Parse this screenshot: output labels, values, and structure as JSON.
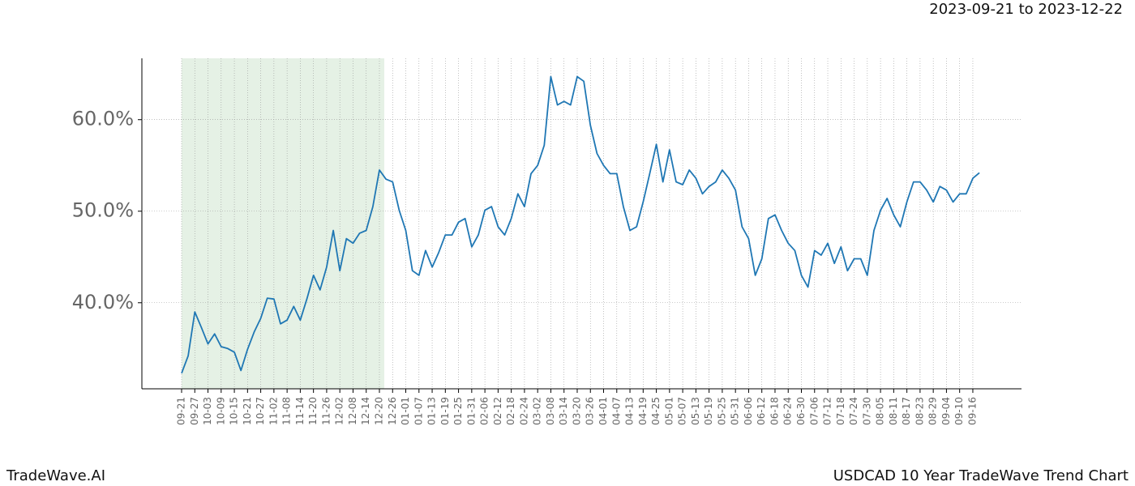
{
  "header": {
    "date_range": "2023-09-21 to 2023-12-22"
  },
  "footer": {
    "brand": "TradeWave.AI",
    "caption": "USDCAD 10 Year TradeWave Trend Chart"
  },
  "chart_data": {
    "type": "line",
    "categories": [
      "09-21",
      null,
      "09-27",
      null,
      "10-03",
      null,
      "10-09",
      null,
      "10-15",
      null,
      "10-21",
      null,
      "10-27",
      null,
      "11-02",
      null,
      "11-08",
      null,
      "11-14",
      null,
      "11-20",
      null,
      "11-26",
      null,
      "12-02",
      null,
      "12-08",
      null,
      "12-14",
      null,
      "12-20",
      null,
      "12-26",
      null,
      "01-01",
      null,
      "01-07",
      null,
      "01-13",
      null,
      "01-19",
      null,
      "01-25",
      null,
      "01-31",
      null,
      "02-06",
      null,
      "02-12",
      null,
      "02-18",
      null,
      "02-24",
      null,
      "03-02",
      null,
      "03-08",
      null,
      "03-14",
      null,
      "03-20",
      null,
      "03-26",
      null,
      "04-01",
      null,
      "04-07",
      null,
      "04-13",
      null,
      "04-19",
      null,
      "04-25",
      null,
      "05-01",
      null,
      "05-07",
      null,
      "05-13",
      null,
      "05-19",
      null,
      "05-25",
      null,
      "05-31",
      null,
      "06-06",
      null,
      "06-12",
      null,
      "06-18",
      null,
      "06-24",
      null,
      "06-30",
      null,
      "07-06",
      null,
      "07-12",
      null,
      "07-18",
      null,
      "07-24",
      null,
      "07-30",
      null,
      "08-05",
      null,
      "08-11",
      null,
      "08-17",
      null,
      "08-23",
      null,
      "08-29",
      null,
      "09-04",
      null,
      "09-10",
      null,
      "09-16",
      null
    ],
    "values": [
      32.3,
      34.2,
      39.0,
      37.3,
      35.5,
      36.6,
      35.2,
      35.0,
      34.6,
      32.6,
      34.9,
      36.8,
      38.3,
      40.5,
      40.4,
      37.7,
      38.1,
      39.6,
      38.1,
      40.4,
      43.0,
      41.4,
      43.9,
      47.9,
      43.5,
      47.0,
      46.5,
      47.6,
      47.9,
      50.5,
      54.5,
      53.5,
      53.2,
      50.1,
      47.9,
      43.5,
      43.0,
      45.7,
      43.9,
      45.5,
      47.4,
      47.4,
      48.8,
      49.2,
      46.1,
      47.4,
      50.1,
      50.5,
      48.3,
      47.4,
      49.2,
      51.9,
      50.5,
      54.1,
      55.0,
      57.2,
      64.7,
      61.6,
      62.0,
      61.6,
      64.7,
      64.2,
      59.4,
      56.3,
      55.0,
      54.1,
      54.1,
      50.5,
      47.9,
      48.3,
      51.0,
      54.1,
      57.3,
      53.2,
      56.7,
      53.2,
      52.9,
      54.5,
      53.6,
      51.9,
      52.7,
      53.2,
      54.5,
      53.6,
      52.3,
      48.3,
      47.0,
      43.0,
      44.8,
      49.2,
      49.6,
      47.9,
      46.5,
      45.7,
      43.0,
      41.7,
      45.7,
      45.2,
      46.5,
      44.3,
      46.1,
      43.5,
      44.8,
      44.8,
      43.0,
      47.9,
      50.1,
      51.4,
      49.6,
      48.3,
      51.0,
      53.2,
      53.2,
      52.3,
      51.0,
      52.7,
      52.3,
      51.0,
      51.9,
      51.9,
      53.6,
      54.2
    ],
    "color": "#1f77b4",
    "ylim": [
      30.6,
      66.7
    ],
    "yticks": [
      {
        "value": 40,
        "label": "40.0%"
      },
      {
        "value": 50,
        "label": "50.0%"
      },
      {
        "value": 60,
        "label": "60.0%"
      }
    ],
    "grid": true
  }
}
